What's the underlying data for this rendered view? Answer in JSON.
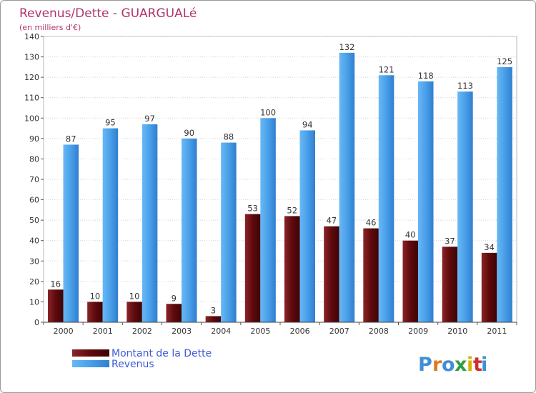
{
  "chart_data": {
    "type": "bar",
    "title": "Revenus/Dette - GUARGUALé",
    "subtitle": "(en milliers d'€)",
    "categories": [
      "2000",
      "2001",
      "2002",
      "2003",
      "2004",
      "2005",
      "2006",
      "2007",
      "2008",
      "2009",
      "2010",
      "2011"
    ],
    "series": [
      {
        "name": "Montant de la Dette",
        "values": [
          16,
          10,
          10,
          9,
          3,
          53,
          52,
          47,
          46,
          40,
          37,
          34
        ],
        "color": "#6e0a0e"
      },
      {
        "name": "Revenus",
        "values": [
          87,
          95,
          97,
          90,
          88,
          100,
          94,
          132,
          121,
          118,
          113,
          125
        ],
        "color": "#4a9fe8"
      }
    ],
    "ylim": [
      0,
      140
    ],
    "yticks": [
      0,
      10,
      20,
      30,
      40,
      50,
      60,
      70,
      80,
      90,
      100,
      110,
      120,
      130,
      140
    ],
    "grid": true,
    "legend_position": "bottom-left"
  },
  "branding": {
    "logo_letters": [
      "P",
      "r",
      "o",
      "x",
      "i",
      "t",
      "i"
    ],
    "logo_colors": [
      "#3f8fd6",
      "#e07a1c",
      "#3f8fd6",
      "#2e9e3e",
      "#d8b400",
      "#cf2f2f",
      "#3f8fd6"
    ]
  }
}
